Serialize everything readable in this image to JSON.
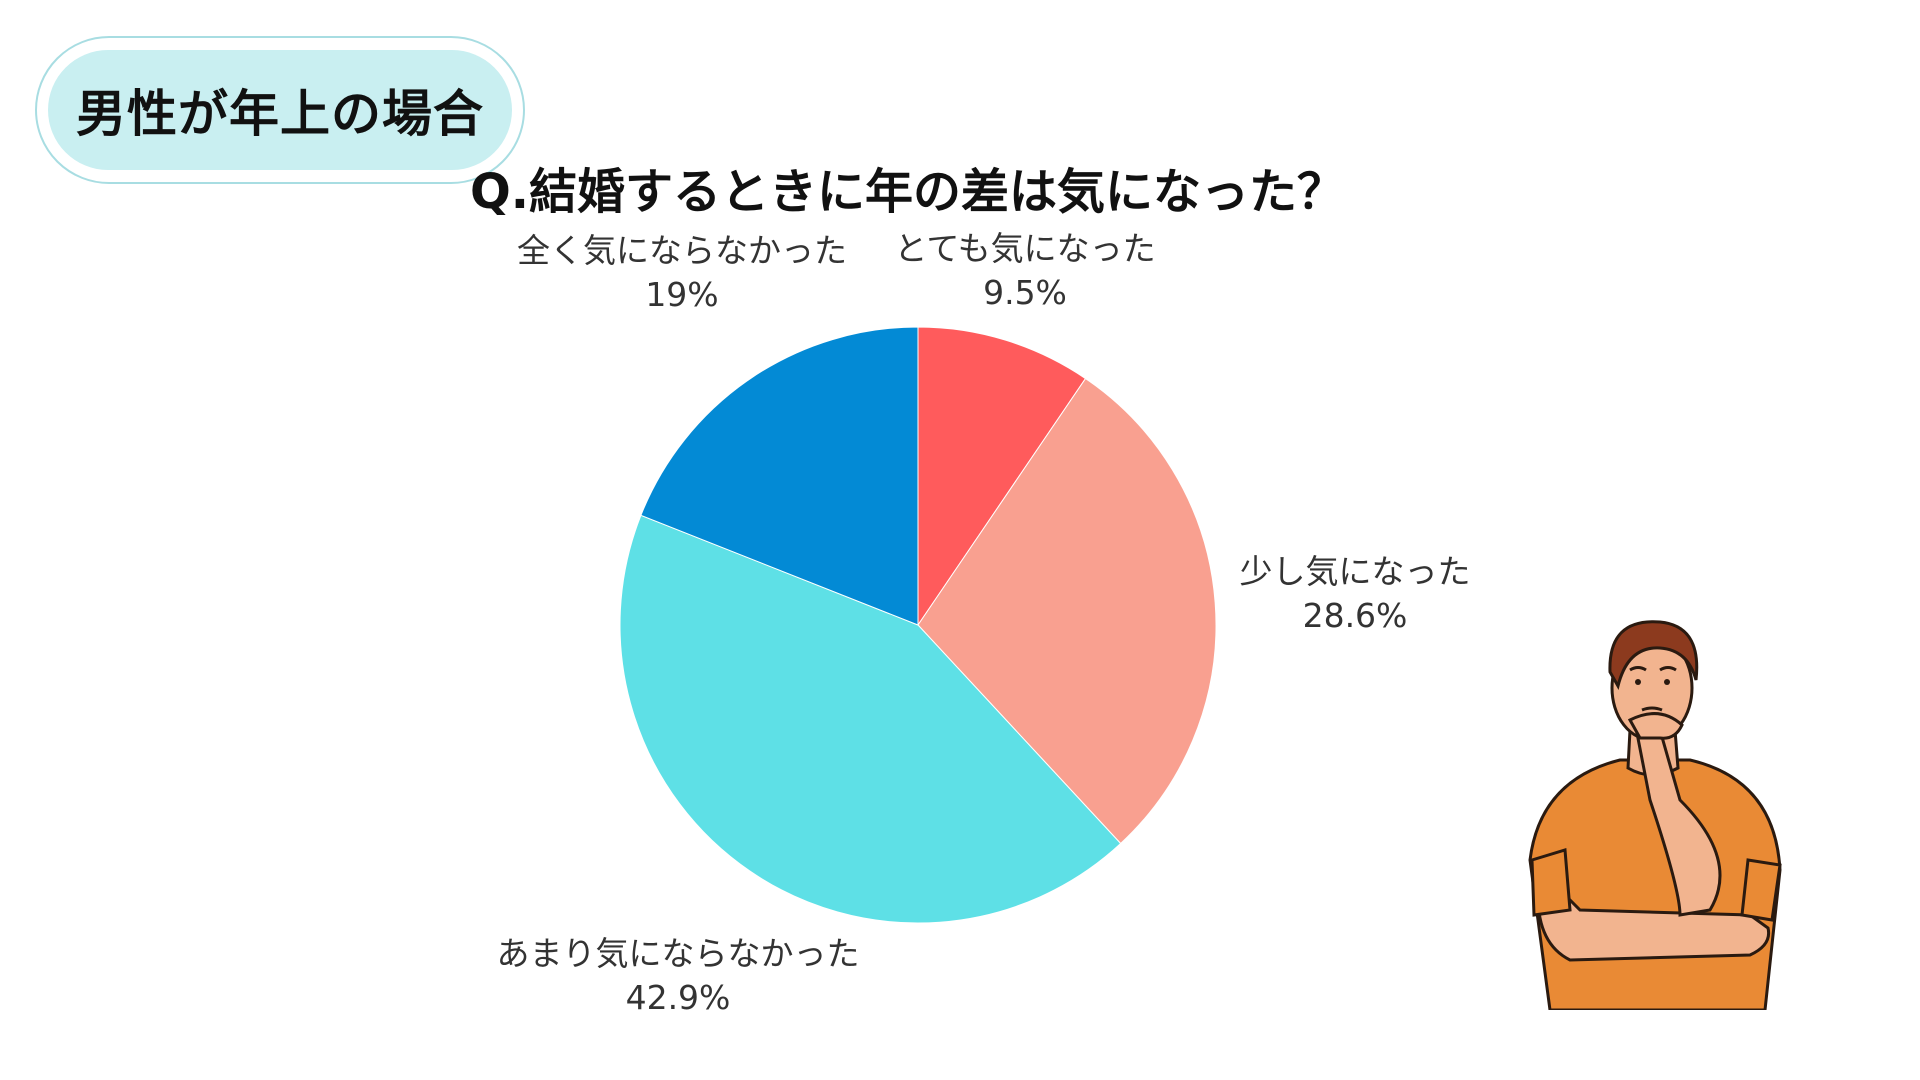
{
  "badge": {
    "text": "男性が年上の場合"
  },
  "chart_data": {
    "type": "pie",
    "title": "Q.結婚するときに年の差は気になった？",
    "slices": [
      {
        "label": "とても気になった",
        "value": 9.5,
        "value_label": "9.5%",
        "color": "#ff5b5c"
      },
      {
        "label": "少し気になった",
        "value": 28.6,
        "value_label": "28.6%",
        "color": "#f9a090"
      },
      {
        "label": "あまり気にならなかった",
        "value": 42.9,
        "value_label": "42.9%",
        "color": "#5ee0e6"
      },
      {
        "label": "全く気にならなかった",
        "value": 19,
        "value_label": "19%",
        "color": "#038ad5"
      }
    ]
  },
  "illustration": {
    "icon": "thinking-man-icon"
  }
}
